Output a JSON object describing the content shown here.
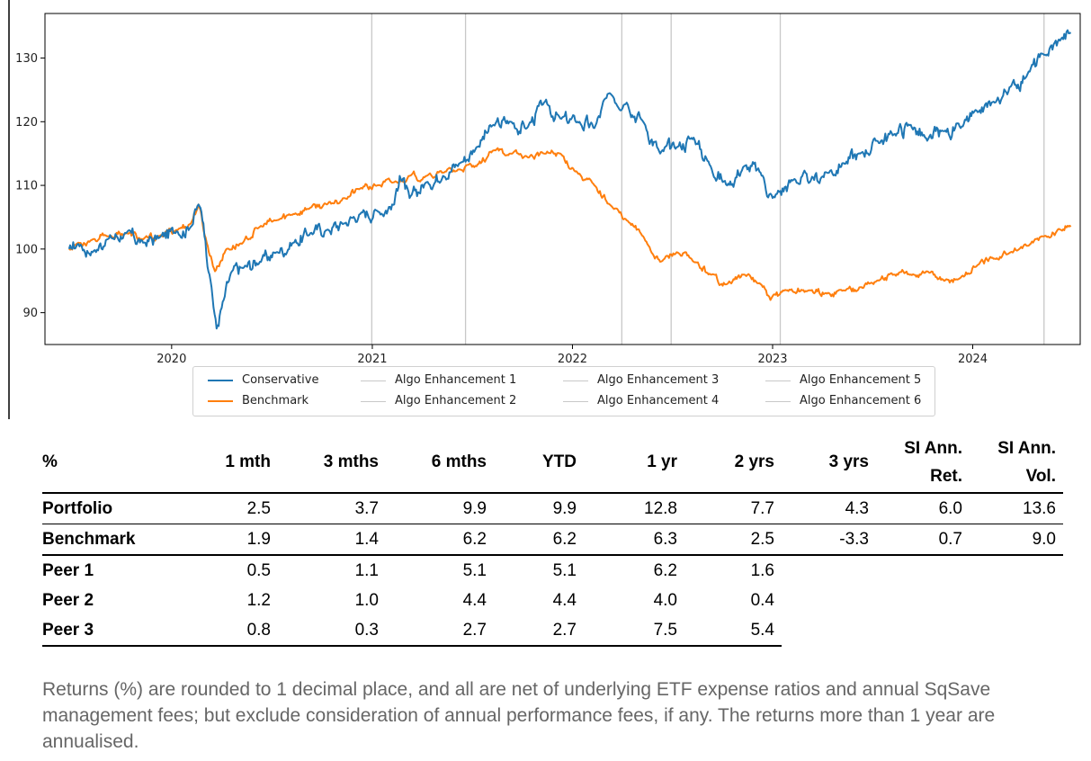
{
  "chart_data": {
    "type": "line",
    "xlim": [
      "2019-05-15",
      "2024-07-15"
    ],
    "ylim": [
      85,
      137
    ],
    "xticks": [
      "2020",
      "2021",
      "2022",
      "2023",
      "2024"
    ],
    "yticks": [
      90,
      100,
      110,
      120,
      130
    ],
    "grid": false,
    "legend_position": "bottom-center",
    "series": [
      {
        "name": "Conservative",
        "color": "#1f77b4",
        "points": [
          [
            "2019-06-28",
            100.0
          ],
          [
            "2019-07-15",
            100.8
          ],
          [
            "2019-08-10",
            99.5
          ],
          [
            "2019-09-05",
            101.5
          ],
          [
            "2019-10-10",
            102.5
          ],
          [
            "2019-11-10",
            101.0
          ],
          [
            "2019-12-10",
            101.8
          ],
          [
            "2020-01-10",
            102.8
          ],
          [
            "2020-02-05",
            103.5
          ],
          [
            "2020-02-19",
            107.0
          ],
          [
            "2020-02-28",
            104.0
          ],
          [
            "2020-03-10",
            96.0
          ],
          [
            "2020-03-23",
            87.5
          ],
          [
            "2020-04-05",
            92.0
          ],
          [
            "2020-04-20",
            96.5
          ],
          [
            "2020-05-10",
            97.0
          ],
          [
            "2020-06-10",
            98.0
          ],
          [
            "2020-07-10",
            99.5
          ],
          [
            "2020-08-10",
            101.0
          ],
          [
            "2020-09-10",
            102.5
          ],
          [
            "2020-10-10",
            103.0
          ],
          [
            "2020-11-10",
            104.0
          ],
          [
            "2020-12-10",
            105.5
          ],
          [
            "2021-01-10",
            106.0
          ],
          [
            "2021-02-10",
            107.0
          ],
          [
            "2021-02-20",
            111.5
          ],
          [
            "2021-03-10",
            108.0
          ],
          [
            "2021-04-10",
            110.5
          ],
          [
            "2021-05-10",
            111.5
          ],
          [
            "2021-06-10",
            113.5
          ],
          [
            "2021-07-10",
            116.0
          ],
          [
            "2021-08-10",
            119.5
          ],
          [
            "2021-09-10",
            120.0
          ],
          [
            "2021-10-10",
            119.0
          ],
          [
            "2021-11-10",
            123.0
          ],
          [
            "2021-12-10",
            120.5
          ],
          [
            "2022-01-10",
            120.0
          ],
          [
            "2022-02-10",
            119.0
          ],
          [
            "2022-03-10",
            124.5
          ],
          [
            "2022-04-10",
            123.0
          ],
          [
            "2022-05-10",
            120.0
          ],
          [
            "2022-06-10",
            115.0
          ],
          [
            "2022-07-10",
            116.0
          ],
          [
            "2022-08-10",
            117.5
          ],
          [
            "2022-09-10",
            113.0
          ],
          [
            "2022-10-10",
            110.0
          ],
          [
            "2022-11-10",
            113.0
          ],
          [
            "2022-12-10",
            112.0
          ],
          [
            "2023-01-01",
            108.0
          ],
          [
            "2023-02-10",
            111.0
          ],
          [
            "2023-03-10",
            110.5
          ],
          [
            "2023-04-10",
            112.0
          ],
          [
            "2023-05-10",
            113.5
          ],
          [
            "2023-06-10",
            115.0
          ],
          [
            "2023-07-10",
            117.0
          ],
          [
            "2023-08-10",
            118.0
          ],
          [
            "2023-09-10",
            119.5
          ],
          [
            "2023-10-10",
            117.0
          ],
          [
            "2023-11-10",
            118.5
          ],
          [
            "2023-12-10",
            119.0
          ],
          [
            "2024-01-10",
            121.5
          ],
          [
            "2024-02-10",
            123.0
          ],
          [
            "2024-03-10",
            125.5
          ],
          [
            "2024-04-10",
            127.5
          ],
          [
            "2024-05-10",
            130.5
          ],
          [
            "2024-06-10",
            133.0
          ],
          [
            "2024-06-28",
            134.0
          ]
        ]
      },
      {
        "name": "Benchmark",
        "color": "#ff7f0e",
        "points": [
          [
            "2019-06-28",
            100.0
          ],
          [
            "2019-07-15",
            101.0
          ],
          [
            "2019-08-10",
            101.5
          ],
          [
            "2019-09-05",
            102.0
          ],
          [
            "2019-10-10",
            102.5
          ],
          [
            "2019-11-10",
            101.5
          ],
          [
            "2019-12-10",
            102.0
          ],
          [
            "2020-01-10",
            103.0
          ],
          [
            "2020-02-05",
            104.0
          ],
          [
            "2020-02-19",
            107.0
          ],
          [
            "2020-03-05",
            101.0
          ],
          [
            "2020-03-20",
            96.5
          ],
          [
            "2020-04-10",
            100.0
          ],
          [
            "2020-05-10",
            101.0
          ],
          [
            "2020-06-10",
            103.5
          ],
          [
            "2020-07-10",
            104.5
          ],
          [
            "2020-08-10",
            105.5
          ],
          [
            "2020-09-10",
            106.5
          ],
          [
            "2020-10-10",
            107.0
          ],
          [
            "2020-11-10",
            108.0
          ],
          [
            "2020-12-10",
            109.5
          ],
          [
            "2021-01-10",
            110.0
          ],
          [
            "2021-02-10",
            110.5
          ],
          [
            "2021-03-10",
            111.5
          ],
          [
            "2021-04-10",
            111.5
          ],
          [
            "2021-05-10",
            112.0
          ],
          [
            "2021-06-10",
            112.5
          ],
          [
            "2021-07-10",
            113.0
          ],
          [
            "2021-08-10",
            115.5
          ],
          [
            "2021-09-10",
            115.0
          ],
          [
            "2021-10-10",
            114.5
          ],
          [
            "2021-11-10",
            115.0
          ],
          [
            "2021-12-10",
            115.0
          ],
          [
            "2022-01-10",
            112.0
          ],
          [
            "2022-02-10",
            110.0
          ],
          [
            "2022-03-10",
            107.0
          ],
          [
            "2022-04-10",
            104.5
          ],
          [
            "2022-05-10",
            102.0
          ],
          [
            "2022-06-10",
            98.0
          ],
          [
            "2022-07-10",
            99.5
          ],
          [
            "2022-08-10",
            98.0
          ],
          [
            "2022-09-10",
            96.0
          ],
          [
            "2022-10-10",
            94.5
          ],
          [
            "2022-11-10",
            96.0
          ],
          [
            "2022-12-10",
            94.5
          ],
          [
            "2022-12-28",
            92.0
          ],
          [
            "2023-01-20",
            93.5
          ],
          [
            "2023-03-10",
            93.5
          ],
          [
            "2023-04-10",
            93.0
          ],
          [
            "2023-05-10",
            93.5
          ],
          [
            "2023-06-10",
            94.0
          ],
          [
            "2023-07-10",
            95.0
          ],
          [
            "2023-08-10",
            96.0
          ],
          [
            "2023-09-10",
            96.0
          ],
          [
            "2023-10-10",
            96.5
          ],
          [
            "2023-11-10",
            95.0
          ],
          [
            "2023-12-10",
            95.5
          ],
          [
            "2024-01-10",
            97.5
          ],
          [
            "2024-02-10",
            98.5
          ],
          [
            "2024-03-10",
            99.5
          ],
          [
            "2024-04-10",
            100.5
          ],
          [
            "2024-05-10",
            102.0
          ],
          [
            "2024-06-10",
            103.0
          ],
          [
            "2024-06-28",
            103.5
          ]
        ]
      }
    ],
    "vlines": [
      {
        "name": "Algo Enhancement 1",
        "date": "2020-12-31"
      },
      {
        "name": "Algo Enhancement 2",
        "date": "2021-06-20"
      },
      {
        "name": "Algo Enhancement 3",
        "date": "2022-04-01"
      },
      {
        "name": "Algo Enhancement 4",
        "date": "2022-06-30"
      },
      {
        "name": "Algo Enhancement 5",
        "date": "2023-01-15"
      },
      {
        "name": "Algo Enhancement 6",
        "date": "2024-05-10"
      }
    ],
    "vline_color": "#c8c8c8"
  },
  "legend": {
    "items": [
      {
        "label": "Conservative",
        "color": "#1f77b4"
      },
      {
        "label": "Benchmark",
        "color": "#ff7f0e"
      },
      {
        "label": "Algo Enhancement 1",
        "color": "#c8c8c8"
      },
      {
        "label": "Algo Enhancement 2",
        "color": "#c8c8c8"
      },
      {
        "label": "Algo Enhancement 3",
        "color": "#c8c8c8"
      },
      {
        "label": "Algo Enhancement 4",
        "color": "#c8c8c8"
      },
      {
        "label": "Algo Enhancement 5",
        "color": "#c8c8c8"
      },
      {
        "label": "Algo Enhancement 6",
        "color": "#c8c8c8"
      }
    ]
  },
  "table": {
    "headers": {
      "label": "%",
      "c1": "1 mth",
      "c2": "3 mths",
      "c3": "6 mths",
      "c4": "YTD",
      "c5": "1 yr",
      "c6": "2 yrs",
      "c7": "3 yrs",
      "c8_line1": "SI Ann.",
      "c8_line2": "Ret.",
      "c9_line1": "SI Ann.",
      "c9_line2": "Vol."
    },
    "rows": [
      {
        "label": "Portfolio",
        "values": [
          "2.5",
          "3.7",
          "9.9",
          "9.9",
          "12.8",
          "7.7",
          "4.3",
          "6.0",
          "13.6"
        ]
      },
      {
        "label": "Benchmark",
        "values": [
          "1.9",
          "1.4",
          "6.2",
          "6.2",
          "6.3",
          "2.5",
          "-3.3",
          "0.7",
          "9.0"
        ]
      },
      {
        "label": "Peer 1",
        "values": [
          "0.5",
          "1.1",
          "5.1",
          "5.1",
          "6.2",
          "1.6"
        ]
      },
      {
        "label": "Peer 2",
        "values": [
          "1.2",
          "1.0",
          "4.4",
          "4.4",
          "4.0",
          "0.4"
        ]
      },
      {
        "label": "Peer 3",
        "values": [
          "0.8",
          "0.3",
          "2.7",
          "2.7",
          "7.5",
          "5.4"
        ]
      }
    ]
  },
  "footnote": "Returns (%) are rounded to 1 decimal place, and all are net of underlying ETF expense ratios and annual SqSave management fees; but exclude consideration of annual performance fees, if any.  The returns more than 1 year are annualised."
}
